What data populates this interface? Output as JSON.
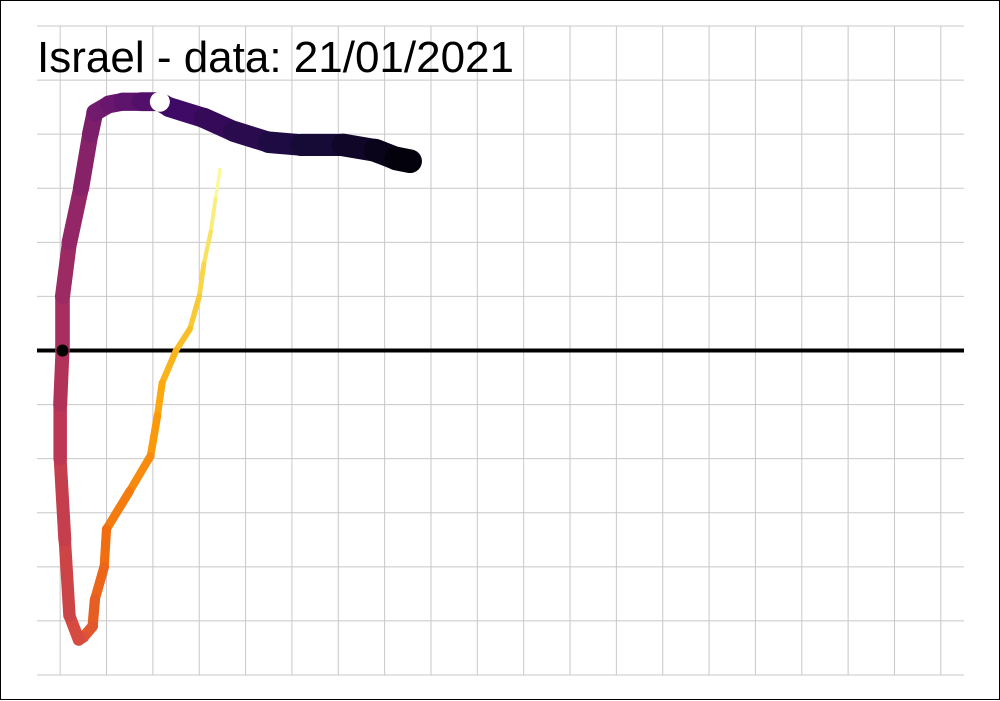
{
  "chart_data": {
    "type": "line",
    "title": "Israel  - data: 21/01/2021",
    "xlabel": "",
    "ylabel": "",
    "grid": true,
    "zero_line": true,
    "x": [
      2.45,
      2.35,
      2.25,
      2.1,
      2.0,
      1.8,
      1.5,
      1.2,
      1.1,
      0.95,
      0.5,
      0.0,
      -0.05,
      -0.25,
      -0.3,
      -0.5,
      -0.6,
      -0.8,
      -0.9,
      -1.0,
      -1.0,
      -0.95,
      -0.95,
      -0.8,
      -0.55,
      -0.35,
      -0.25,
      0.05,
      0.35,
      0.75,
      1.15,
      1.35,
      2.1,
      2.75,
      3.5,
      4.2,
      5.1,
      5.8,
      6.25,
      6.55
    ],
    "y": [
      3.35,
      2.8,
      2.2,
      1.6,
      1.0,
      0.4,
      0.0,
      -0.6,
      -1.2,
      -1.95,
      -2.6,
      -3.3,
      -4.0,
      -4.6,
      -5.1,
      -5.3,
      -5.35,
      -4.9,
      -3.5,
      -2.0,
      -1.0,
      0.0,
      1.0,
      2.0,
      3.0,
      4.0,
      4.4,
      4.55,
      4.6,
      4.6,
      4.6,
      4.5,
      4.3,
      4.05,
      3.85,
      3.8,
      3.8,
      3.7,
      3.55,
      3.5
    ],
    "xlim": [
      -1.5,
      18.5
    ],
    "ylim": [
      -6,
      6
    ],
    "colors": [
      "#fcffa4",
      "#f7d13d",
      "#fca50a",
      "#f06a10",
      "#dd513a",
      "#bc3754",
      "#932667",
      "#6a176e",
      "#420a68",
      "#190b3c",
      "#000004"
    ],
    "marker_start_color": "#000000",
    "marker_start_index": 21,
    "marker_white_color": "#ffffff",
    "marker_white_index": 30
  }
}
